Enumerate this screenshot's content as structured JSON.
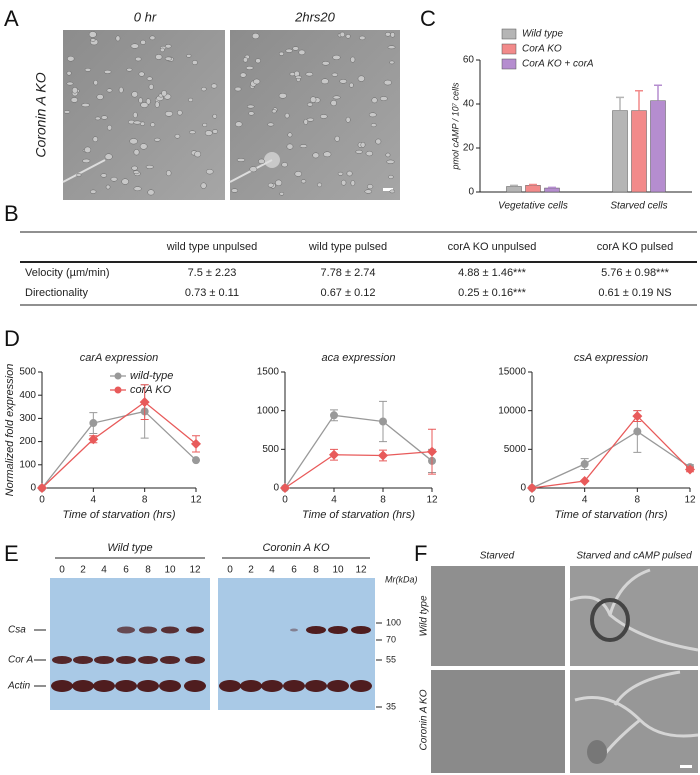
{
  "panel_labels": [
    "A",
    "B",
    "C",
    "D",
    "E",
    "F"
  ],
  "panel_a": {
    "row_label": "Coronin A KO",
    "columns": [
      "0 hr",
      "2hrs20"
    ]
  },
  "panel_b": {
    "table": {
      "header": [
        "wild type unpulsed",
        "wild type pulsed",
        "corA KO unpulsed",
        "corA KO pulsed"
      ],
      "rows": [
        [
          "Velocity (µm/min)",
          "7.5 ± 2.23",
          "7.78 ± 2.74",
          "4.88 ± 1.46***",
          "5.76 ± 0.98***"
        ],
        [
          "Directionality",
          "0.73 ± 0.11",
          "0.67 ± 0.12",
          "0.25 ± 0.16***",
          "0.61 ± 0.19 NS"
        ]
      ]
    }
  },
  "chart_data": [
    {
      "type": "bar",
      "ylabel": "pmol cAMP / 10⁷ cells",
      "categories": [
        "Vegetative cells",
        "Starved cells"
      ],
      "series": [
        {
          "name": "Wild type",
          "color": "#b5b5b5",
          "values": [
            2.5,
            37
          ],
          "errors": [
            0.5,
            6
          ]
        },
        {
          "name": "CorA KO",
          "color": "#f28a8a",
          "values": [
            3,
            37
          ],
          "errors": [
            0.4,
            9
          ]
        },
        {
          "name": "CorA KO + corA",
          "color": "#b58dcf",
          "values": [
            1.8,
            41.5
          ],
          "errors": [
            0.3,
            7
          ]
        }
      ],
      "ylim": [
        0,
        60
      ],
      "yticks": [
        0,
        20,
        40,
        60
      ]
    },
    {
      "type": "line",
      "title": "carA expression",
      "ylabel": "Normalized fold expression",
      "xlabel": "Time of starvation (hrs)",
      "x": [
        0,
        4,
        8,
        12
      ],
      "xlim": [
        0,
        12
      ],
      "xticks": [
        0,
        4,
        8,
        12
      ],
      "ylim": [
        0,
        500
      ],
      "yticks": [
        0,
        100,
        200,
        300,
        400,
        500
      ],
      "legend": true,
      "series": [
        {
          "name": "wild-type",
          "color": "#999999",
          "values": [
            0,
            280,
            330,
            120
          ],
          "errors": [
            0,
            45,
            115,
            0
          ]
        },
        {
          "name": "corA KO",
          "color": "#e85a5a",
          "values": [
            0,
            210,
            370,
            190
          ],
          "errors": [
            0,
            15,
            75,
            35
          ]
        }
      ]
    },
    {
      "type": "line",
      "title": "aca expression",
      "xlabel": "Time of starvation (hrs)",
      "x": [
        0,
        4,
        8,
        12
      ],
      "xlim": [
        0,
        12
      ],
      "xticks": [
        0,
        4,
        8,
        12
      ],
      "ylim": [
        0,
        1500
      ],
      "yticks": [
        0,
        500,
        1000,
        1500
      ],
      "legend": false,
      "series": [
        {
          "name": "wild-type",
          "color": "#999999",
          "values": [
            0,
            940,
            860,
            350
          ],
          "errors": [
            0,
            70,
            260,
            150
          ]
        },
        {
          "name": "corA KO",
          "color": "#e85a5a",
          "values": [
            0,
            430,
            420,
            470
          ],
          "errors": [
            0,
            70,
            70,
            290
          ]
        }
      ]
    },
    {
      "type": "line",
      "title": "csA expression",
      "xlabel": "Time of starvation (hrs)",
      "x": [
        0,
        4,
        8,
        12
      ],
      "xlim": [
        0,
        12
      ],
      "xticks": [
        0,
        4,
        8,
        12
      ],
      "ylim": [
        0,
        15000
      ],
      "yticks": [
        0,
        5000,
        10000,
        15000
      ],
      "legend": false,
      "series": [
        {
          "name": "wild-type",
          "color": "#999999",
          "values": [
            0,
            3100,
            7300,
            2700
          ],
          "errors": [
            0,
            700,
            2700,
            300
          ]
        },
        {
          "name": "corA KO",
          "color": "#e85a5a",
          "values": [
            0,
            900,
            9300,
            2400
          ],
          "errors": [
            0,
            0,
            700,
            300
          ]
        }
      ]
    }
  ],
  "panel_e": {
    "groups": [
      "Wild type",
      "Coronin A KO"
    ],
    "lanes": [
      "0",
      "2",
      "4",
      "6",
      "8",
      "10",
      "12"
    ],
    "rows": [
      "Csa",
      "Cor A",
      "Actin"
    ],
    "marker_title": "Mr(kDa)",
    "markers": [
      "100",
      "70",
      "55",
      "35"
    ]
  },
  "panel_f": {
    "columns": [
      "Starved",
      "Starved and cAMP pulsed"
    ],
    "rows": [
      "Wild type",
      "Coronin A KO"
    ]
  }
}
